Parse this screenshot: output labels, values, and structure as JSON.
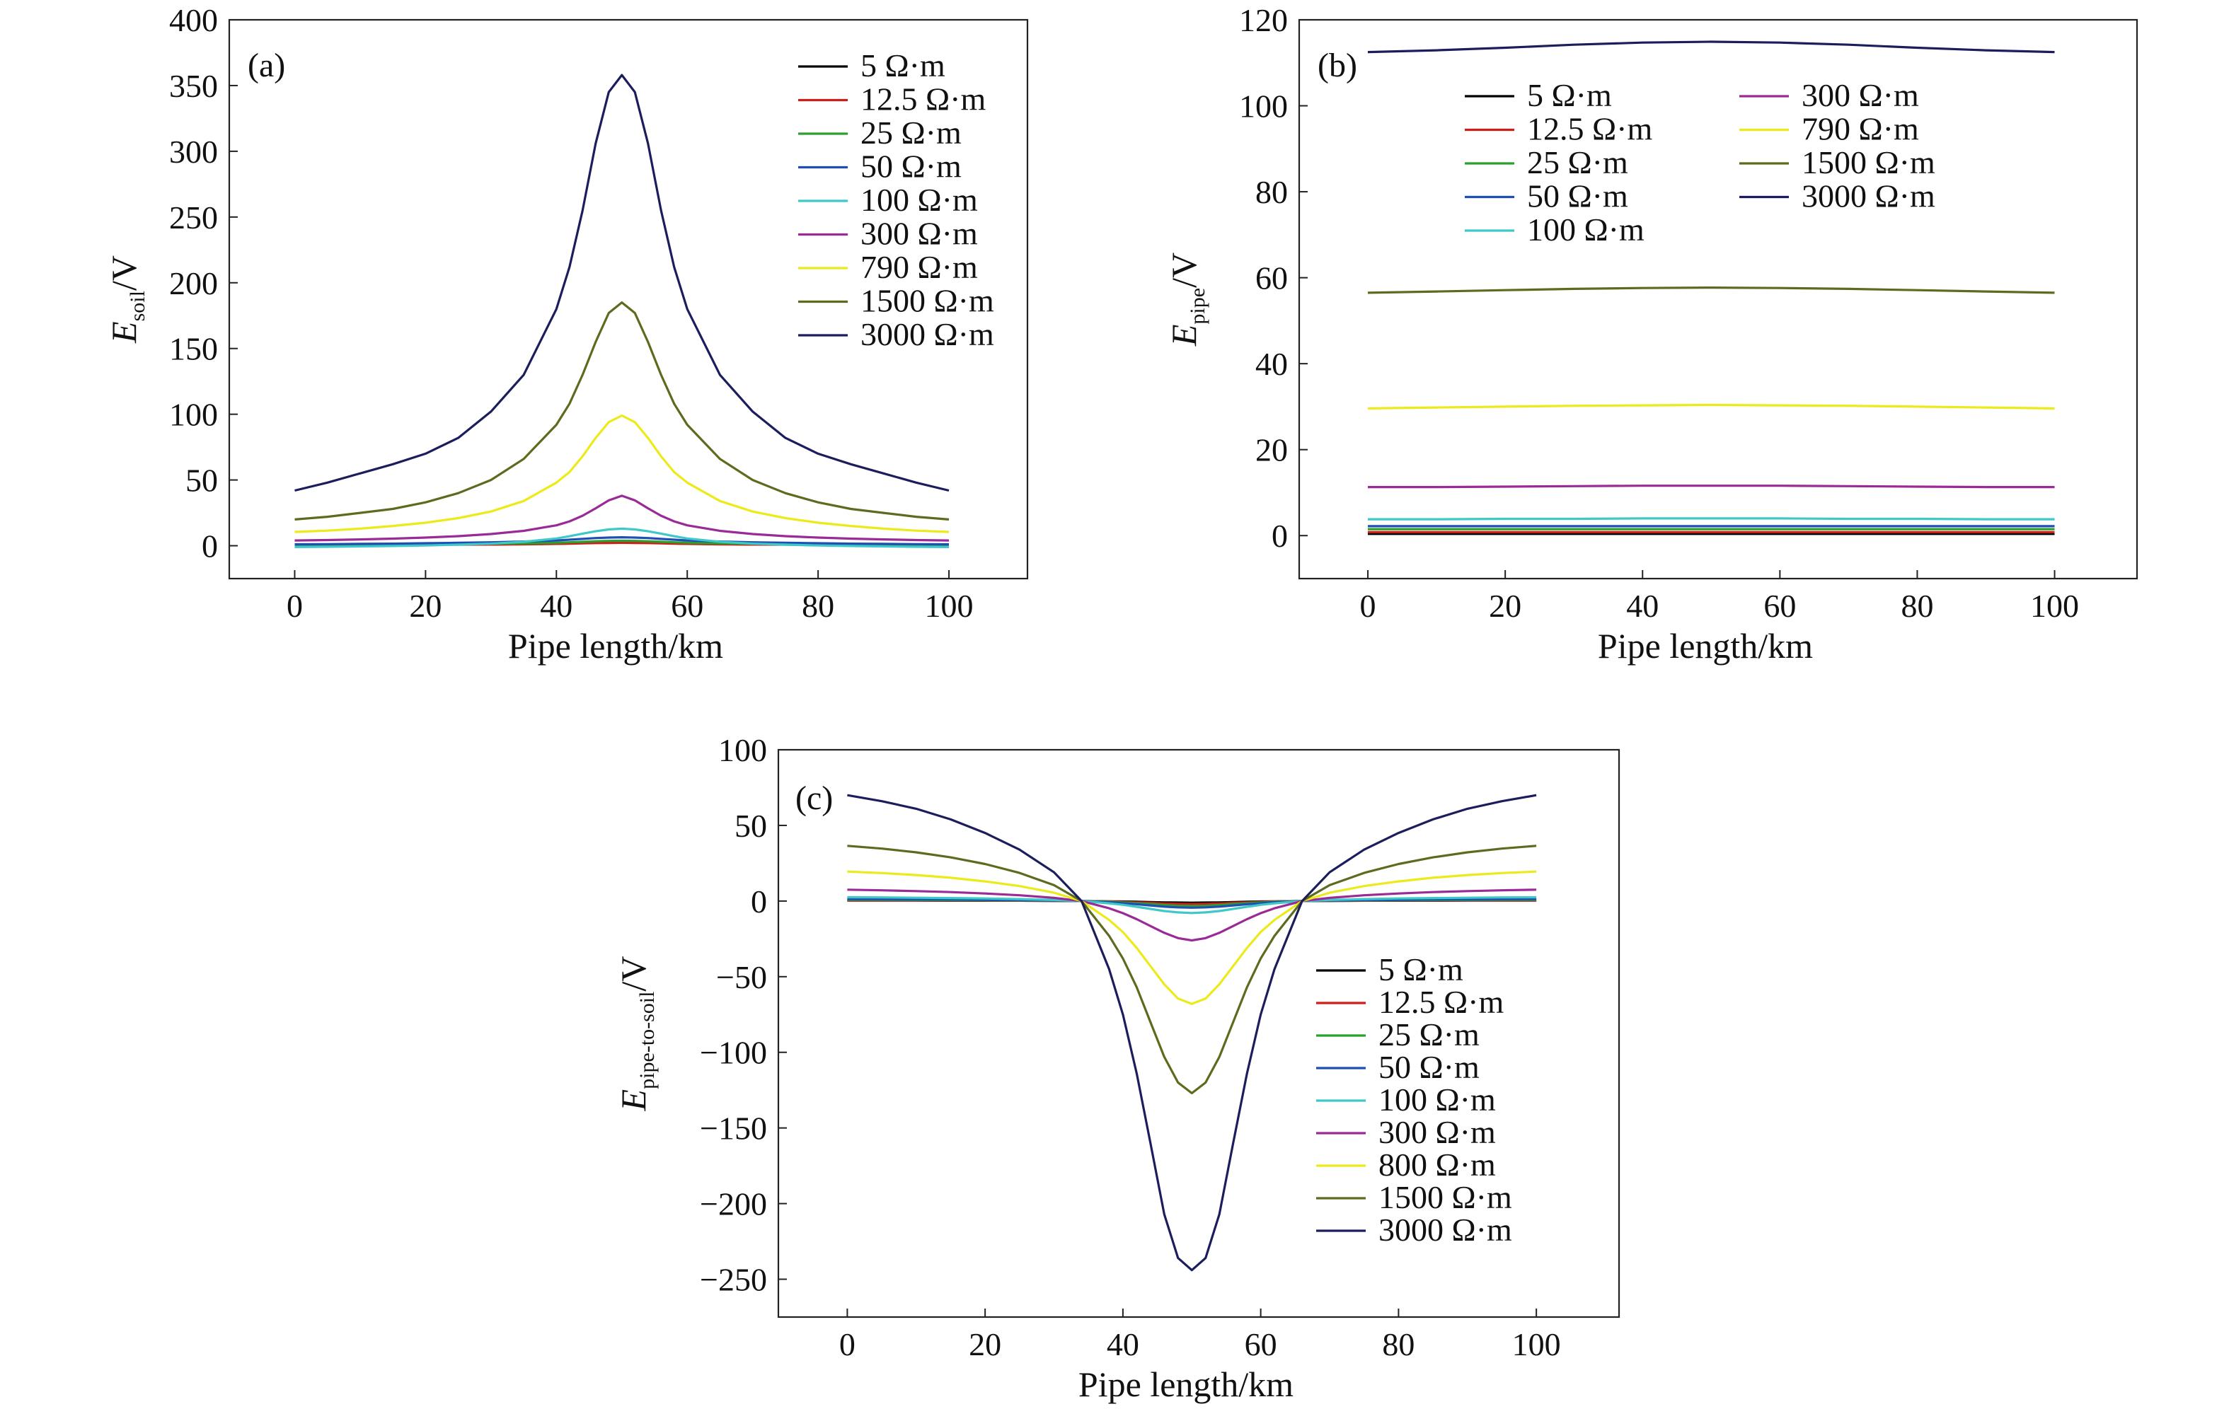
{
  "chart_data": [
    {
      "type": "line",
      "panel_label": "(a)",
      "xlabel": "Pipe length/km",
      "ylabel": {
        "italic": "E",
        "sub": "soil",
        "unit": "/V"
      },
      "xlim": [
        -10,
        112
      ],
      "ylim": [
        -25,
        400
      ],
      "x_ticks": [
        0,
        20,
        40,
        60,
        80,
        100
      ],
      "y_ticks": [
        0,
        50,
        100,
        150,
        200,
        250,
        300,
        350,
        400
      ],
      "x_tick_labels": [
        "0",
        "20",
        "40",
        "60",
        "80",
        "100"
      ],
      "y_tick_labels": [
        "0",
        "50",
        "100",
        "150",
        "200",
        "250",
        "300",
        "350",
        "400"
      ],
      "legend_position": "top-right",
      "legend_columns": 1,
      "grid": false,
      "x": [
        0,
        5,
        10,
        15,
        20,
        25,
        30,
        35,
        40,
        42,
        44,
        46,
        48,
        50,
        52,
        54,
        56,
        58,
        60,
        65,
        70,
        75,
        80,
        85,
        90,
        95,
        100
      ],
      "series": [
        {
          "name": "5 Ω·m",
          "color": "#000000",
          "values": [
            0.5,
            0.5,
            0.6,
            0.7,
            0.8,
            0.9,
            1.0,
            1.2,
            1.5,
            1.7,
            2.0,
            2.3,
            2.5,
            2.6,
            2.5,
            2.3,
            2.0,
            1.7,
            1.5,
            1.2,
            1.0,
            0.9,
            0.8,
            0.7,
            0.6,
            0.5,
            0.5
          ]
        },
        {
          "name": "12.5 Ω·m",
          "color": "#cc1f1a",
          "values": [
            0.4,
            0.4,
            0.5,
            0.6,
            0.7,
            0.8,
            0.9,
            1.1,
            1.4,
            1.6,
            1.8,
            2.0,
            2.1,
            2.2,
            2.1,
            2.0,
            1.8,
            1.6,
            1.4,
            1.1,
            0.9,
            0.8,
            0.7,
            0.6,
            0.5,
            0.4,
            0.4
          ]
        },
        {
          "name": "25 Ω·m",
          "color": "#2ca02c",
          "values": [
            0.6,
            0.7,
            0.8,
            0.9,
            1.0,
            1.2,
            1.5,
            1.8,
            2.3,
            2.6,
            3.0,
            3.4,
            3.7,
            3.8,
            3.7,
            3.4,
            3.0,
            2.6,
            2.3,
            1.8,
            1.5,
            1.2,
            1.0,
            0.9,
            0.8,
            0.7,
            0.6
          ]
        },
        {
          "name": "50 Ω·m",
          "color": "#1f4fb4",
          "values": [
            1.1,
            1.2,
            1.4,
            1.6,
            1.9,
            2.2,
            2.6,
            3.2,
            4.0,
            4.6,
            5.2,
            5.8,
            6.2,
            6.4,
            6.2,
            5.8,
            5.2,
            4.6,
            4.0,
            3.2,
            2.6,
            2.2,
            1.9,
            1.6,
            1.4,
            1.2,
            1.1
          ]
        },
        {
          "name": "100 Ω·m",
          "color": "#3ec8c8",
          "values": [
            -1.0,
            -0.8,
            -0.5,
            -0.2,
            0.2,
            0.8,
            1.6,
            3.0,
            5.5,
            7.2,
            9.2,
            11.0,
            12.4,
            13.0,
            12.4,
            11.0,
            9.2,
            7.2,
            5.5,
            3.0,
            1.6,
            0.8,
            0.2,
            -0.2,
            -0.5,
            -0.8,
            -1.0
          ]
        },
        {
          "name": "300 Ω·m",
          "color": "#9a2a96",
          "values": [
            4,
            4.3,
            4.8,
            5.4,
            6.2,
            7.3,
            8.9,
            11.3,
            15.5,
            18.5,
            22.8,
            28.5,
            34.5,
            38,
            34.5,
            28.5,
            22.8,
            18.5,
            15.5,
            11.3,
            8.9,
            7.3,
            6.2,
            5.4,
            4.8,
            4.3,
            4
          ]
        },
        {
          "name": "790 Ω·m",
          "color": "#ecea1a",
          "values": [
            10.5,
            11.5,
            13,
            15,
            17.5,
            21,
            26,
            34,
            48,
            56,
            68,
            82,
            94,
            99,
            94,
            82,
            68,
            56,
            48,
            34,
            26,
            21,
            17.5,
            15,
            13,
            11.5,
            10.5
          ]
        },
        {
          "name": "1500 Ω·m",
          "color": "#5d6b1f",
          "values": [
            20,
            22,
            25,
            28,
            33,
            40,
            50,
            66,
            92,
            108,
            130,
            155,
            177,
            185,
            177,
            155,
            130,
            108,
            92,
            66,
            50,
            40,
            33,
            28,
            25,
            22,
            20
          ]
        },
        {
          "name": "3000 Ω·m",
          "color": "#1b1d5c",
          "values": [
            42,
            48,
            55,
            62,
            70,
            82,
            102,
            130,
            180,
            212,
            255,
            306,
            345,
            358,
            345,
            306,
            255,
            212,
            180,
            130,
            102,
            82,
            70,
            62,
            55,
            48,
            42
          ]
        }
      ]
    },
    {
      "type": "line",
      "panel_label": "(b)",
      "xlabel": "Pipe length/km",
      "ylabel": {
        "italic": "E",
        "sub": "pipe",
        "unit": "/V"
      },
      "xlim": [
        -10,
        112
      ],
      "ylim": [
        -10,
        120
      ],
      "x_ticks": [
        0,
        20,
        40,
        60,
        80,
        100
      ],
      "y_ticks": [
        0,
        20,
        40,
        60,
        80,
        100,
        120
      ],
      "x_tick_labels": [
        "0",
        "20",
        "40",
        "60",
        "80",
        "100"
      ],
      "y_tick_labels": [
        "0",
        "20",
        "40",
        "60",
        "80",
        "100",
        "120"
      ],
      "legend_position": "top-center",
      "legend_columns": 2,
      "grid": false,
      "x": [
        0,
        10,
        20,
        30,
        40,
        50,
        60,
        70,
        80,
        90,
        100
      ],
      "series": [
        {
          "name": "5 Ω·m",
          "color": "#000000",
          "values": [
            0.4,
            0.4,
            0.4,
            0.4,
            0.4,
            0.4,
            0.4,
            0.4,
            0.4,
            0.4,
            0.4
          ]
        },
        {
          "name": "12.5 Ω·m",
          "color": "#cc1f1a",
          "values": [
            0.8,
            0.8,
            0.8,
            0.8,
            0.8,
            0.8,
            0.8,
            0.8,
            0.8,
            0.8,
            0.8
          ]
        },
        {
          "name": "25 Ω·m",
          "color": "#2ca02c",
          "values": [
            1.5,
            1.5,
            1.5,
            1.5,
            1.5,
            1.5,
            1.5,
            1.5,
            1.5,
            1.5,
            1.5
          ]
        },
        {
          "name": "50 Ω·m",
          "color": "#1f4fb4",
          "values": [
            2.2,
            2.2,
            2.2,
            2.2,
            2.2,
            2.2,
            2.2,
            2.2,
            2.2,
            2.2,
            2.2
          ]
        },
        {
          "name": "100 Ω·m",
          "color": "#3ec8c8",
          "values": [
            3.8,
            3.8,
            3.9,
            3.9,
            4.0,
            4.0,
            4.0,
            3.9,
            3.9,
            3.8,
            3.8
          ]
        },
        {
          "name": "300 Ω·m",
          "color": "#9a2a96",
          "values": [
            11.3,
            11.3,
            11.4,
            11.5,
            11.6,
            11.6,
            11.6,
            11.5,
            11.4,
            11.3,
            11.3
          ]
        },
        {
          "name": "790 Ω·m",
          "color": "#ecea1a",
          "values": [
            29.6,
            29.8,
            30.0,
            30.2,
            30.3,
            30.4,
            30.3,
            30.2,
            30.0,
            29.8,
            29.6
          ]
        },
        {
          "name": "1500 Ω·m",
          "color": "#5d6b1f",
          "values": [
            56.5,
            56.8,
            57.1,
            57.4,
            57.6,
            57.7,
            57.6,
            57.4,
            57.1,
            56.8,
            56.5
          ]
        },
        {
          "name": "3000 Ω·m",
          "color": "#1b1d5c",
          "values": [
            112.5,
            112.9,
            113.5,
            114.2,
            114.7,
            114.9,
            114.7,
            114.2,
            113.5,
            112.9,
            112.5
          ]
        }
      ]
    },
    {
      "type": "line",
      "panel_label": "(c)",
      "xlabel": "Pipe length/km",
      "ylabel": {
        "italic": "E",
        "sub": "pipe-to-soil",
        "unit": "/V"
      },
      "xlim": [
        -10,
        112
      ],
      "ylim": [
        -275,
        100
      ],
      "x_ticks": [
        0,
        20,
        40,
        60,
        80,
        100
      ],
      "y_ticks": [
        -250,
        -200,
        -150,
        -100,
        -50,
        0,
        50,
        100
      ],
      "x_tick_labels": [
        "0",
        "20",
        "40",
        "60",
        "80",
        "100"
      ],
      "y_tick_labels": [
        "−250",
        "−200",
        "−150",
        "−100",
        "−50",
        "0",
        "50",
        "100"
      ],
      "legend_position": "lower-right",
      "legend_columns": 1,
      "grid": false,
      "x": [
        0,
        5,
        10,
        15,
        20,
        25,
        30,
        34,
        38,
        40,
        42,
        44,
        46,
        48,
        50,
        52,
        54,
        56,
        58,
        60,
        62,
        66,
        70,
        75,
        80,
        85,
        90,
        95,
        100
      ],
      "series": [
        {
          "name": "5 Ω·m",
          "color": "#000000",
          "values": [
            0.3,
            0.3,
            0.3,
            0.2,
            0.2,
            0.2,
            0.1,
            0,
            -0.2,
            -0.3,
            -0.5,
            -0.7,
            -0.9,
            -1.0,
            -1.1,
            -1.0,
            -0.9,
            -0.7,
            -0.5,
            -0.3,
            -0.2,
            0,
            0.1,
            0.2,
            0.2,
            0.2,
            0.3,
            0.3,
            0.3
          ]
        },
        {
          "name": "12.5 Ω·m",
          "color": "#cc1f1a",
          "values": [
            0.4,
            0.4,
            0.4,
            0.3,
            0.3,
            0.2,
            0.1,
            0,
            -0.3,
            -0.6,
            -0.9,
            -1.2,
            -1.6,
            -1.9,
            -2.0,
            -1.9,
            -1.6,
            -1.2,
            -0.9,
            -0.6,
            -0.3,
            0,
            0.1,
            0.2,
            0.3,
            0.3,
            0.4,
            0.4,
            0.4
          ]
        },
        {
          "name": "25 Ω·m",
          "color": "#2ca02c",
          "values": [
            0.8,
            0.8,
            0.7,
            0.6,
            0.5,
            0.4,
            0.2,
            0,
            -0.5,
            -0.9,
            -1.4,
            -2.0,
            -2.6,
            -3.1,
            -3.3,
            -3.1,
            -2.6,
            -2.0,
            -1.4,
            -0.9,
            -0.5,
            0,
            0.2,
            0.4,
            0.5,
            0.6,
            0.7,
            0.8,
            0.8
          ]
        },
        {
          "name": "50 Ω·m",
          "color": "#1f4fb4",
          "values": [
            1.3,
            1.2,
            1.1,
            1.0,
            0.8,
            0.6,
            0.3,
            0,
            -0.8,
            -1.4,
            -2.1,
            -2.9,
            -3.7,
            -4.2,
            -4.4,
            -4.2,
            -3.7,
            -2.9,
            -2.1,
            -1.4,
            -0.8,
            0,
            0.3,
            0.6,
            0.8,
            1.0,
            1.1,
            1.2,
            1.3
          ]
        },
        {
          "name": "100 Ω·m",
          "color": "#3ec8c8",
          "values": [
            2.5,
            2.4,
            2.2,
            2.0,
            1.7,
            1.3,
            0.7,
            0,
            -1.5,
            -2.5,
            -3.8,
            -5.2,
            -6.6,
            -7.5,
            -7.9,
            -7.5,
            -6.6,
            -5.2,
            -3.8,
            -2.5,
            -1.5,
            0,
            0.7,
            1.3,
            1.7,
            2.0,
            2.2,
            2.4,
            2.5
          ]
        },
        {
          "name": "300 Ω·m",
          "color": "#9a2a96",
          "values": [
            7.5,
            7.1,
            6.6,
            5.9,
            5.0,
            3.8,
            2.1,
            0,
            -4.8,
            -8.0,
            -12.0,
            -16.5,
            -21.0,
            -24.5,
            -26.0,
            -24.5,
            -21.0,
            -16.5,
            -12.0,
            -8.0,
            -4.8,
            0,
            2.1,
            3.8,
            5.0,
            5.9,
            6.6,
            7.1,
            7.5
          ]
        },
        {
          "name": "800 Ω·m",
          "color": "#ecea1a",
          "values": [
            19.5,
            18.5,
            17.2,
            15.4,
            13.0,
            9.9,
            5.5,
            0,
            -12.5,
            -20.5,
            -31,
            -43,
            -55,
            -64.5,
            -68,
            -64.5,
            -55,
            -43,
            -31,
            -20.5,
            -12.5,
            0,
            5.5,
            9.9,
            13.0,
            15.4,
            17.2,
            18.5,
            19.5
          ]
        },
        {
          "name": "1500 Ω·m",
          "color": "#5d6b1f",
          "values": [
            36.5,
            34.7,
            32.2,
            28.9,
            24.5,
            18.6,
            10.5,
            0,
            -23,
            -38,
            -57,
            -80,
            -103,
            -120,
            -127,
            -120,
            -103,
            -80,
            -57,
            -38,
            -23,
            0,
            10.5,
            18.6,
            24.5,
            28.9,
            32.2,
            34.7,
            36.5
          ]
        },
        {
          "name": "3000 Ω·m",
          "color": "#1b1d5c",
          "values": [
            70,
            66,
            61,
            54,
            45,
            34,
            19,
            0,
            -45,
            -75,
            -114,
            -160,
            -207,
            -236,
            -244,
            -236,
            -207,
            -160,
            -114,
            -75,
            -45,
            0,
            19,
            34,
            45,
            54,
            61,
            66,
            70
          ]
        }
      ]
    }
  ]
}
